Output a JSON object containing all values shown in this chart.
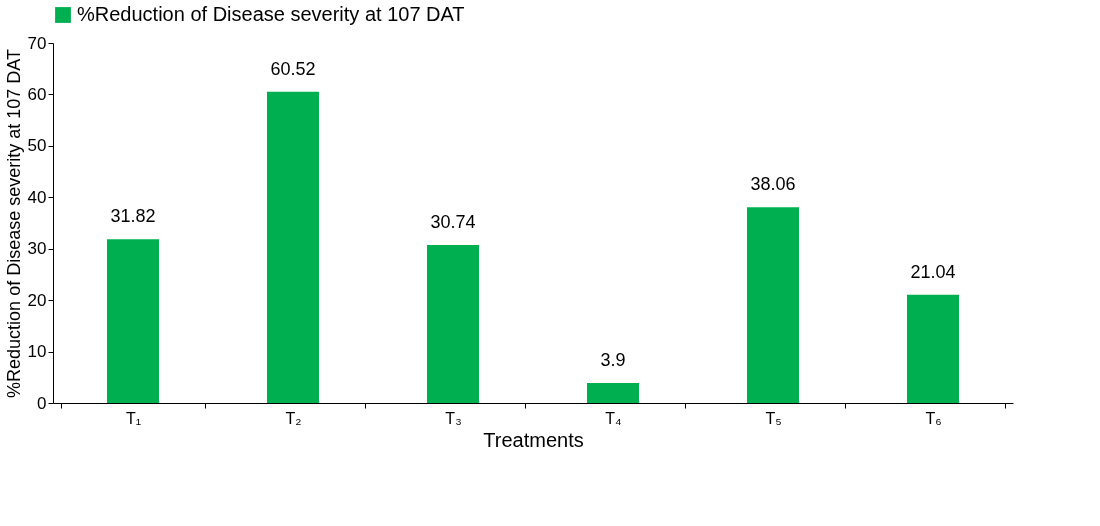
{
  "chart_data": {
    "type": "bar",
    "categories": [
      "T₁",
      "T₂",
      "T₃",
      "T₄",
      "T₅",
      "T₆"
    ],
    "series": [
      {
        "name": "%Reduction of Disease severity at 107 DAT",
        "color": "#00b050",
        "values": [
          31.82,
          60.52,
          30.74,
          3.9,
          38.06,
          21.04
        ]
      }
    ],
    "xlabel": "Treatments",
    "ylabel": "%Reduction of Disease severity at 107 DAT",
    "ylim": [
      0,
      70
    ],
    "yticks": [
      0,
      10,
      20,
      30,
      40,
      50,
      60,
      70
    ],
    "data_labels": true,
    "grid": false,
    "legend": "top"
  }
}
